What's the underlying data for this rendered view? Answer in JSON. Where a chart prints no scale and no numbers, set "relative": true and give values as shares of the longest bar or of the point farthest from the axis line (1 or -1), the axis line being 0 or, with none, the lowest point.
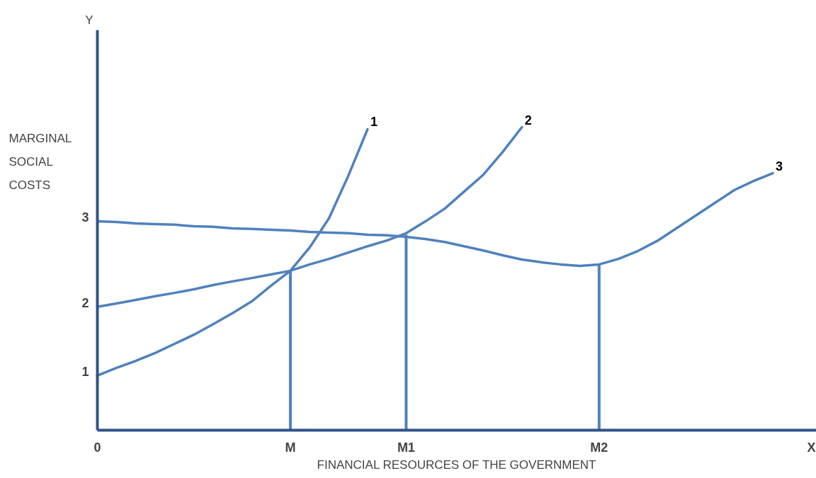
{
  "chart_data": {
    "type": "line",
    "relative": true,
    "ylabel": "MARGINAL SOCIAL COSTS",
    "xlabel": "FINANCIAL RESOURCES OF THE GOVERNMENT",
    "categories": [
      "0",
      null,
      null,
      null,
      null,
      null,
      null,
      null,
      null,
      null,
      "M",
      null,
      null,
      null,
      null,
      null,
      "M1",
      null,
      null,
      null,
      null,
      null,
      null,
      null,
      null,
      null,
      "M2",
      null,
      null,
      null,
      null,
      null,
      null,
      null,
      null,
      null,
      null,
      "X"
    ],
    "annotations": [
      "Y",
      {
        "text": "3",
        "x": "0",
        "y": 0.689
      },
      {
        "text": "2",
        "x": "0",
        "y": 0.407
      },
      {
        "text": "1",
        "x": "0",
        "y": 0.18
      }
    ],
    "series": [
      {
        "name": "1",
        "color": "#4f81bd",
        "values": [
          0.18,
          0.206,
          0.229,
          0.255,
          0.285,
          0.315,
          0.35,
          0.386,
          0.425,
          0.477,
          0.526,
          0.603,
          0.699,
          0.839,
          0.993,
          null,
          null,
          null,
          null,
          null,
          null,
          null,
          null,
          null,
          null,
          null,
          null,
          null,
          null,
          null,
          null,
          null,
          null,
          null,
          null,
          null,
          null,
          null
        ]
      },
      {
        "name": "2",
        "color": "#4f81bd",
        "values": [
          0.407,
          0.418,
          0.43,
          0.442,
          0.453,
          0.465,
          0.479,
          0.491,
          0.502,
          0.514,
          0.526,
          0.547,
          0.565,
          0.586,
          0.607,
          0.626,
          0.65,
          0.689,
          0.731,
          0.787,
          0.843,
          0.918,
          1.0,
          null,
          null,
          null,
          null,
          null,
          null,
          null,
          null,
          null,
          null,
          null,
          null,
          null,
          null,
          null
        ]
      },
      {
        "name": "3",
        "color": "#4f81bd",
        "values": [
          0.689,
          0.687,
          0.682,
          0.68,
          0.678,
          0.673,
          0.671,
          0.666,
          0.664,
          0.661,
          0.659,
          0.654,
          0.652,
          0.65,
          0.645,
          0.643,
          0.638,
          0.631,
          0.621,
          0.607,
          0.593,
          0.577,
          0.563,
          0.554,
          0.547,
          0.542,
          0.547,
          0.565,
          0.591,
          0.624,
          0.666,
          0.708,
          0.75,
          0.792,
          0.822,
          0.848,
          null,
          null
        ]
      },
      {
        "type": "bar",
        "color": "#4f81bd",
        "values": [
          null,
          null,
          null,
          null,
          null,
          null,
          null,
          null,
          null,
          null,
          0.526,
          null,
          null,
          null,
          null,
          null,
          0.645,
          null,
          null,
          null,
          null,
          null,
          null,
          null,
          null,
          null,
          0.547,
          null,
          null,
          null,
          null,
          null,
          null,
          null,
          null,
          null,
          null,
          null
        ]
      }
    ]
  }
}
